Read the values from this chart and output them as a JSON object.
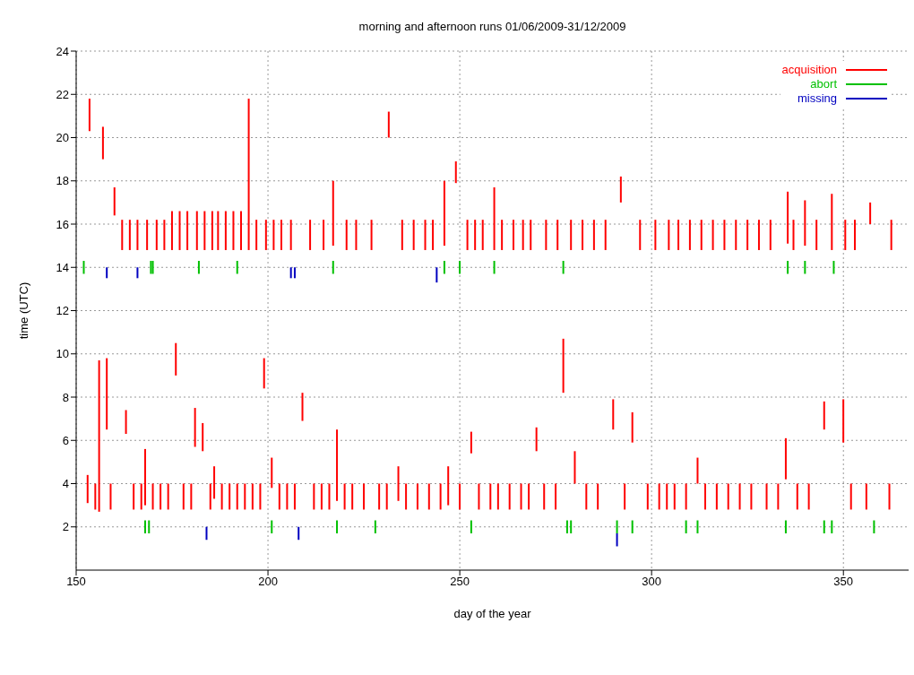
{
  "chart_data": {
    "type": "bar",
    "title": "morning and afternoon runs 01/06/2009-31/12/2009",
    "xlabel": "day of the year",
    "ylabel": "time (UTC)",
    "xlim": [
      150,
      367
    ],
    "xticks": [
      150,
      200,
      250,
      300,
      350
    ],
    "ylim": [
      0,
      24
    ],
    "yticks": [
      2,
      4,
      6,
      8,
      10,
      12,
      14,
      16,
      18,
      20,
      22,
      24
    ],
    "grid": true,
    "legend": "top right",
    "series": [
      {
        "name": "acquisition",
        "color": "#ff0000",
        "x": [
          153,
          153.5,
          155,
          156,
          157,
          158,
          159,
          160,
          162,
          163,
          164,
          165,
          166,
          167,
          168,
          168.5,
          170,
          171,
          172,
          173,
          174,
          175,
          176,
          177,
          178,
          179,
          180,
          181,
          181.5,
          183,
          183.5,
          185,
          185.5,
          186,
          187,
          188,
          189,
          190,
          191,
          192,
          193,
          194,
          195,
          196,
          197,
          198,
          199,
          199.5,
          201,
          201.5,
          203,
          203.5,
          205,
          206,
          207,
          209,
          211,
          212,
          214,
          214.5,
          216,
          217,
          218,
          220,
          220.5,
          222,
          223,
          225,
          227,
          229,
          231,
          231.5,
          234,
          235,
          236,
          238,
          239,
          241,
          242,
          243,
          245,
          246,
          247,
          249,
          250,
          252,
          253,
          254,
          255,
          256,
          258,
          259,
          260,
          261,
          263,
          264,
          266,
          266.5,
          268,
          268.5,
          270,
          272,
          272.5,
          275,
          275.5,
          277,
          279,
          280,
          282,
          283,
          285,
          286,
          288,
          290,
          292,
          293,
          295,
          297,
          299,
          301,
          302,
          304,
          304.5,
          306,
          307,
          309,
          310,
          312,
          313,
          314,
          316,
          317,
          319,
          320,
          322,
          323,
          325,
          326,
          328,
          330,
          331,
          333,
          335,
          335.5,
          337,
          338,
          340,
          341,
          343,
          345,
          347,
          350,
          350.5,
          352,
          353,
          356,
          357,
          362,
          362.5
        ],
        "base": [
          3.1,
          20.3,
          2.8,
          2.7,
          19.0,
          6.5,
          2.8,
          16.4,
          14.8,
          6.3,
          14.8,
          2.8,
          14.8,
          2.8,
          3.0,
          14.8,
          2.8,
          14.8,
          2.8,
          14.8,
          2.8,
          14.8,
          9.0,
          14.8,
          2.8,
          14.8,
          2.8,
          5.7,
          14.8,
          5.5,
          14.8,
          2.8,
          14.8,
          3.3,
          14.8,
          2.8,
          14.8,
          2.8,
          14.8,
          2.8,
          14.8,
          2.8,
          14.8,
          2.8,
          14.8,
          2.8,
          8.4,
          14.8,
          3.8,
          14.8,
          2.8,
          14.8,
          2.8,
          14.8,
          2.8,
          6.9,
          14.8,
          2.8,
          2.8,
          14.8,
          2.8,
          15.0,
          3.2,
          2.8,
          14.8,
          2.8,
          14.8,
          2.8,
          14.8,
          2.8,
          2.8,
          20.0,
          3.2,
          14.8,
          2.8,
          14.8,
          2.8,
          14.8,
          2.8,
          14.8,
          2.8,
          15.0,
          3.0,
          17.9,
          2.8,
          14.8,
          5.4,
          14.8,
          2.8,
          14.8,
          2.8,
          14.8,
          2.8,
          14.8,
          2.8,
          14.8,
          2.8,
          14.8,
          2.8,
          14.8,
          5.5,
          2.8,
          14.8,
          2.8,
          14.8,
          8.2,
          14.8,
          4.0,
          14.8,
          2.8,
          14.8,
          2.8,
          14.8,
          6.5,
          17.0,
          2.8,
          5.9,
          14.8,
          2.8,
          14.8,
          2.8,
          2.8,
          14.8,
          2.8,
          14.8,
          2.8,
          14.8,
          4.0,
          14.8,
          2.8,
          14.8,
          2.8,
          14.8,
          2.8,
          14.8,
          2.8,
          14.8,
          2.8,
          14.8,
          2.8,
          14.8,
          2.8,
          4.2,
          15.1,
          14.8,
          2.8,
          15.0,
          2.8,
          14.8,
          6.5,
          14.8,
          5.9,
          14.8,
          2.8,
          14.8,
          2.8,
          16.0,
          2.8,
          14.8
        ],
        "values": [
          1.3,
          1.5,
          1.2,
          7.0,
          1.5,
          3.3,
          1.2,
          1.3,
          1.4,
          1.1,
          1.4,
          1.2,
          1.4,
          1.2,
          2.6,
          1.4,
          1.2,
          1.4,
          1.2,
          1.4,
          1.2,
          1.8,
          1.5,
          1.8,
          1.2,
          1.8,
          1.2,
          1.8,
          1.8,
          1.3,
          1.8,
          1.2,
          1.8,
          1.5,
          1.8,
          1.2,
          1.8,
          1.2,
          1.8,
          1.2,
          1.8,
          1.2,
          7.0,
          1.2,
          1.4,
          1.2,
          1.4,
          1.4,
          1.4,
          1.4,
          1.2,
          1.4,
          1.2,
          1.4,
          1.2,
          1.3,
          1.4,
          1.2,
          1.2,
          1.4,
          1.2,
          3.0,
          3.3,
          1.2,
          1.4,
          1.2,
          1.4,
          1.2,
          1.4,
          1.2,
          1.2,
          1.2,
          1.6,
          1.4,
          1.2,
          1.4,
          1.2,
          1.4,
          1.2,
          1.4,
          1.2,
          3.0,
          1.8,
          1.0,
          1.2,
          1.4,
          1.0,
          1.4,
          1.2,
          1.4,
          1.2,
          2.9,
          1.2,
          1.4,
          1.2,
          1.4,
          1.2,
          1.4,
          1.2,
          1.4,
          1.1,
          1.2,
          1.4,
          1.2,
          1.4,
          2.5,
          1.4,
          1.5,
          1.4,
          1.2,
          1.4,
          1.2,
          1.4,
          1.4,
          1.2,
          1.2,
          1.4,
          1.4,
          1.2,
          1.4,
          1.2,
          1.2,
          1.4,
          1.2,
          1.4,
          1.2,
          1.4,
          1.2,
          1.4,
          1.2,
          1.4,
          1.2,
          1.4,
          1.2,
          1.4,
          1.2,
          1.4,
          1.2,
          1.4,
          1.2,
          1.4,
          1.2,
          1.9,
          2.4,
          1.4,
          1.2,
          2.1,
          1.2,
          1.4,
          1.3,
          2.6,
          2.0,
          1.4,
          1.2,
          1.4,
          1.2,
          1.0,
          1.2,
          1.4
        ]
      },
      {
        "name": "abort",
        "color": "#00c000",
        "x": [
          152,
          168,
          169,
          169.5,
          170,
          182,
          192,
          201,
          217,
          218,
          228,
          246,
          250,
          253,
          259,
          277,
          278,
          279,
          291,
          295,
          309,
          312,
          335,
          335.5,
          340,
          345,
          347,
          347.5,
          358
        ],
        "base": [
          13.7,
          1.7,
          1.7,
          13.7,
          13.7,
          13.7,
          13.7,
          1.7,
          13.7,
          1.7,
          1.7,
          13.7,
          13.7,
          1.7,
          13.7,
          13.7,
          1.7,
          1.7,
          1.7,
          1.7,
          1.7,
          1.7,
          1.7,
          13.7,
          13.7,
          1.7,
          1.7,
          13.7,
          1.7
        ],
        "values": [
          0.6,
          0.6,
          0.6,
          0.6,
          0.6,
          0.6,
          0.6,
          0.6,
          0.6,
          0.6,
          0.6,
          0.6,
          0.6,
          0.6,
          0.6,
          0.6,
          0.6,
          0.6,
          0.6,
          0.6,
          0.6,
          0.6,
          0.6,
          0.6,
          0.6,
          0.6,
          0.6,
          0.6,
          0.6
        ]
      },
      {
        "name": "missing",
        "color": "#0000c0",
        "x": [
          158,
          166,
          184,
          206,
          207,
          208,
          244,
          291
        ],
        "base": [
          13.5,
          13.5,
          1.4,
          13.5,
          13.5,
          1.4,
          13.3,
          1.1
        ],
        "values": [
          0.5,
          0.5,
          0.6,
          0.5,
          0.5,
          0.6,
          0.7,
          0.6
        ]
      }
    ]
  }
}
